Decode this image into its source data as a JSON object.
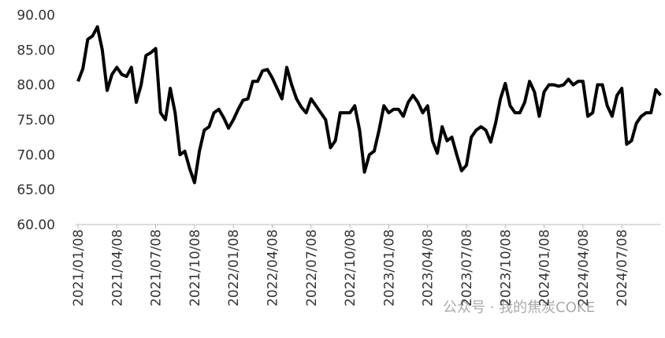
{
  "chart_data": {
    "type": "line",
    "categories": [
      "2021/01/08",
      null,
      null,
      null,
      null,
      null,
      null,
      null,
      "2021/04/08",
      null,
      null,
      null,
      null,
      null,
      null,
      null,
      "2021/07/08",
      null,
      null,
      null,
      null,
      null,
      null,
      null,
      "2021/10/08",
      null,
      null,
      null,
      null,
      null,
      null,
      null,
      "2022/01/08",
      null,
      null,
      null,
      null,
      null,
      null,
      null,
      "2022/04/08",
      null,
      null,
      null,
      null,
      null,
      null,
      null,
      "2022/07/08",
      null,
      null,
      null,
      null,
      null,
      null,
      null,
      "2022/10/08",
      null,
      null,
      null,
      null,
      null,
      null,
      null,
      "2023/01/08",
      null,
      null,
      null,
      null,
      null,
      null,
      null,
      "2023/04/08",
      null,
      null,
      null,
      null,
      null,
      null,
      null,
      "2023/07/08",
      null,
      null,
      null,
      null,
      null,
      null,
      null,
      "2023/10/08",
      null,
      null,
      null,
      null,
      null,
      null,
      null,
      "2024/01/08",
      null,
      null,
      null,
      null,
      null,
      null,
      null,
      "2024/04/08",
      null,
      null,
      null,
      null,
      null,
      null,
      null,
      "2024/07/08",
      null,
      null,
      null,
      null,
      null,
      null,
      null,
      null
    ],
    "series": [
      {
        "color": "#000000",
        "values": [
          80.5,
          82.3,
          86.5,
          87,
          88.3,
          85,
          79.2,
          81.5,
          82.5,
          81.5,
          81.2,
          82.5,
          77.5,
          80,
          84.2,
          84.6,
          85.2,
          76,
          75,
          79.5,
          76,
          70,
          70.5,
          68,
          66,
          70.5,
          73.5,
          74,
          76,
          76.5,
          75.3,
          73.8,
          75,
          76.5,
          77.8,
          78,
          80.5,
          80.5,
          82,
          82.2,
          81,
          79.5,
          78,
          82.5,
          80,
          78,
          76.8,
          76,
          78,
          77,
          76,
          75,
          71,
          72,
          76,
          76,
          76,
          77,
          73.5,
          67.5,
          70,
          70.5,
          73.5,
          77,
          76,
          76.5,
          76.5,
          75.5,
          77.5,
          78.5,
          77.5,
          76,
          77,
          72,
          70.2,
          74,
          72,
          72.5,
          70,
          67.7,
          68.5,
          72.5,
          73.5,
          74,
          73.5,
          71.8,
          74.5,
          78,
          80.2,
          77,
          76,
          76,
          77.5,
          80.5,
          79,
          75.5,
          79,
          80,
          80,
          79.8,
          80,
          80.8,
          80,
          80.5,
          80.5,
          75.5,
          76,
          80,
          80,
          77,
          75.5,
          78.5,
          79.5,
          71.5,
          72,
          74.5,
          75.5,
          76,
          76,
          79.3,
          78.5
        ]
      }
    ],
    "ylim": [
      60,
      90
    ],
    "yticks": [
      {
        "value": 60,
        "label": "60.00"
      },
      {
        "value": 65,
        "label": "65.00"
      },
      {
        "value": 70,
        "label": "70.00"
      },
      {
        "value": 75,
        "label": "75.00"
      },
      {
        "value": 80,
        "label": "80.00"
      },
      {
        "value": 85,
        "label": "85.00"
      },
      {
        "value": 90,
        "label": "90.00"
      }
    ],
    "watermark": "公众号 · 我的焦炭COKE"
  }
}
